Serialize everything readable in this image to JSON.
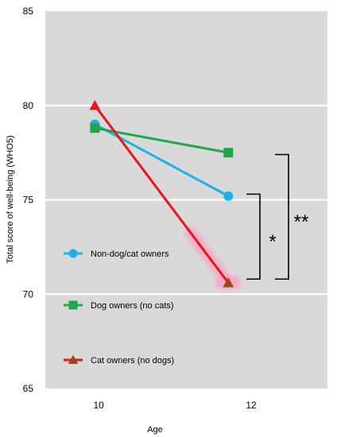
{
  "chart_data": {
    "type": "line",
    "xlabel": "Age",
    "ylabel": "Total score of well-being (WHO5)",
    "xlim": [
      9.3,
      13.0
    ],
    "ylim": [
      65,
      85
    ],
    "xticks": [
      10,
      12
    ],
    "yticks": [
      65,
      70,
      75,
      80,
      85
    ],
    "grid": true,
    "legend_position": "inside-left",
    "series": [
      {
        "name": "Non-dog/cat owners",
        "color": "#1ab2e8",
        "marker": "circle",
        "points": [
          [
            9.95,
            79.0
          ],
          [
            11.7,
            75.2
          ]
        ]
      },
      {
        "name": "Dog owners (no cats)",
        "color": "#1fa84a",
        "marker": "square",
        "points": [
          [
            9.95,
            78.8
          ],
          [
            11.7,
            77.5
          ]
        ]
      },
      {
        "name": "Cat owners (no dogs)",
        "color": "#e8141a",
        "marker": "triangle",
        "points": [
          [
            9.95,
            80.0
          ],
          [
            11.7,
            70.6
          ]
        ]
      }
    ],
    "annotations": [
      {
        "label": "*",
        "y_from": 70.8,
        "y_to": 75.3
      },
      {
        "label": "**",
        "y_from": 70.8,
        "y_to": 77.4
      }
    ]
  }
}
